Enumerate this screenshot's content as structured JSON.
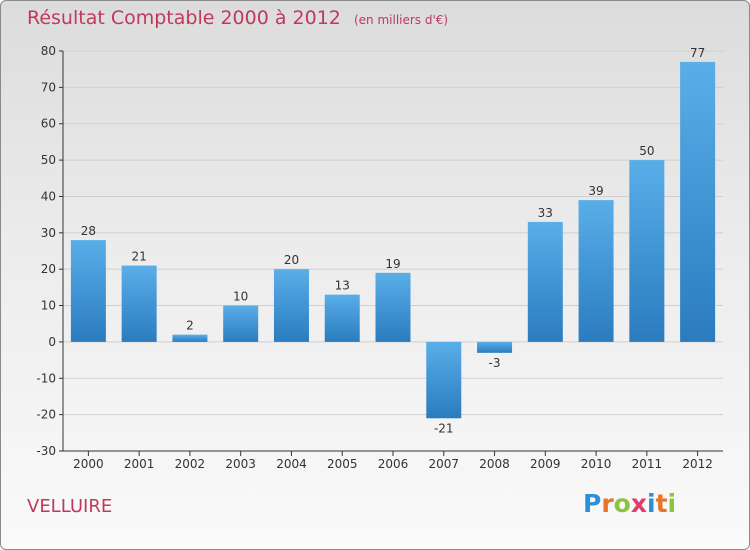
{
  "title": "Résultat Comptable 2000 à 2012",
  "subtitle": "(en milliers d'€)",
  "commune": "VELLUIRE",
  "brand": {
    "letters": [
      "P",
      "r",
      "o",
      "x",
      "i",
      "t",
      "i"
    ],
    "colors": [
      "#2f8fd6",
      "#e8742a",
      "#8cc43f",
      "#e23c6f",
      "#2f8fd6",
      "#e8742a",
      "#8cc43f"
    ]
  },
  "colors": {
    "bar_light": "#5aaee8",
    "bar_dark": "#2a7cbf",
    "title": "#c0395d",
    "grid": "#d0d0d0",
    "axis": "#333333"
  },
  "chart_data": {
    "type": "bar",
    "title": "Résultat Comptable 2000 à 2012",
    "subtitle": "(en milliers d'€)",
    "xlabel": "",
    "ylabel": "",
    "categories": [
      "2000",
      "2001",
      "2002",
      "2003",
      "2004",
      "2005",
      "2006",
      "2007",
      "2008",
      "2009",
      "2010",
      "2011",
      "2012"
    ],
    "values": [
      28,
      21,
      2,
      10,
      20,
      13,
      19,
      -21,
      -3,
      33,
      39,
      50,
      77
    ],
    "ylim": [
      -30,
      80
    ],
    "yticks": [
      80,
      70,
      60,
      50,
      40,
      30,
      20,
      10,
      0,
      -10,
      -20,
      -30
    ],
    "grid": true,
    "legend": "none"
  }
}
